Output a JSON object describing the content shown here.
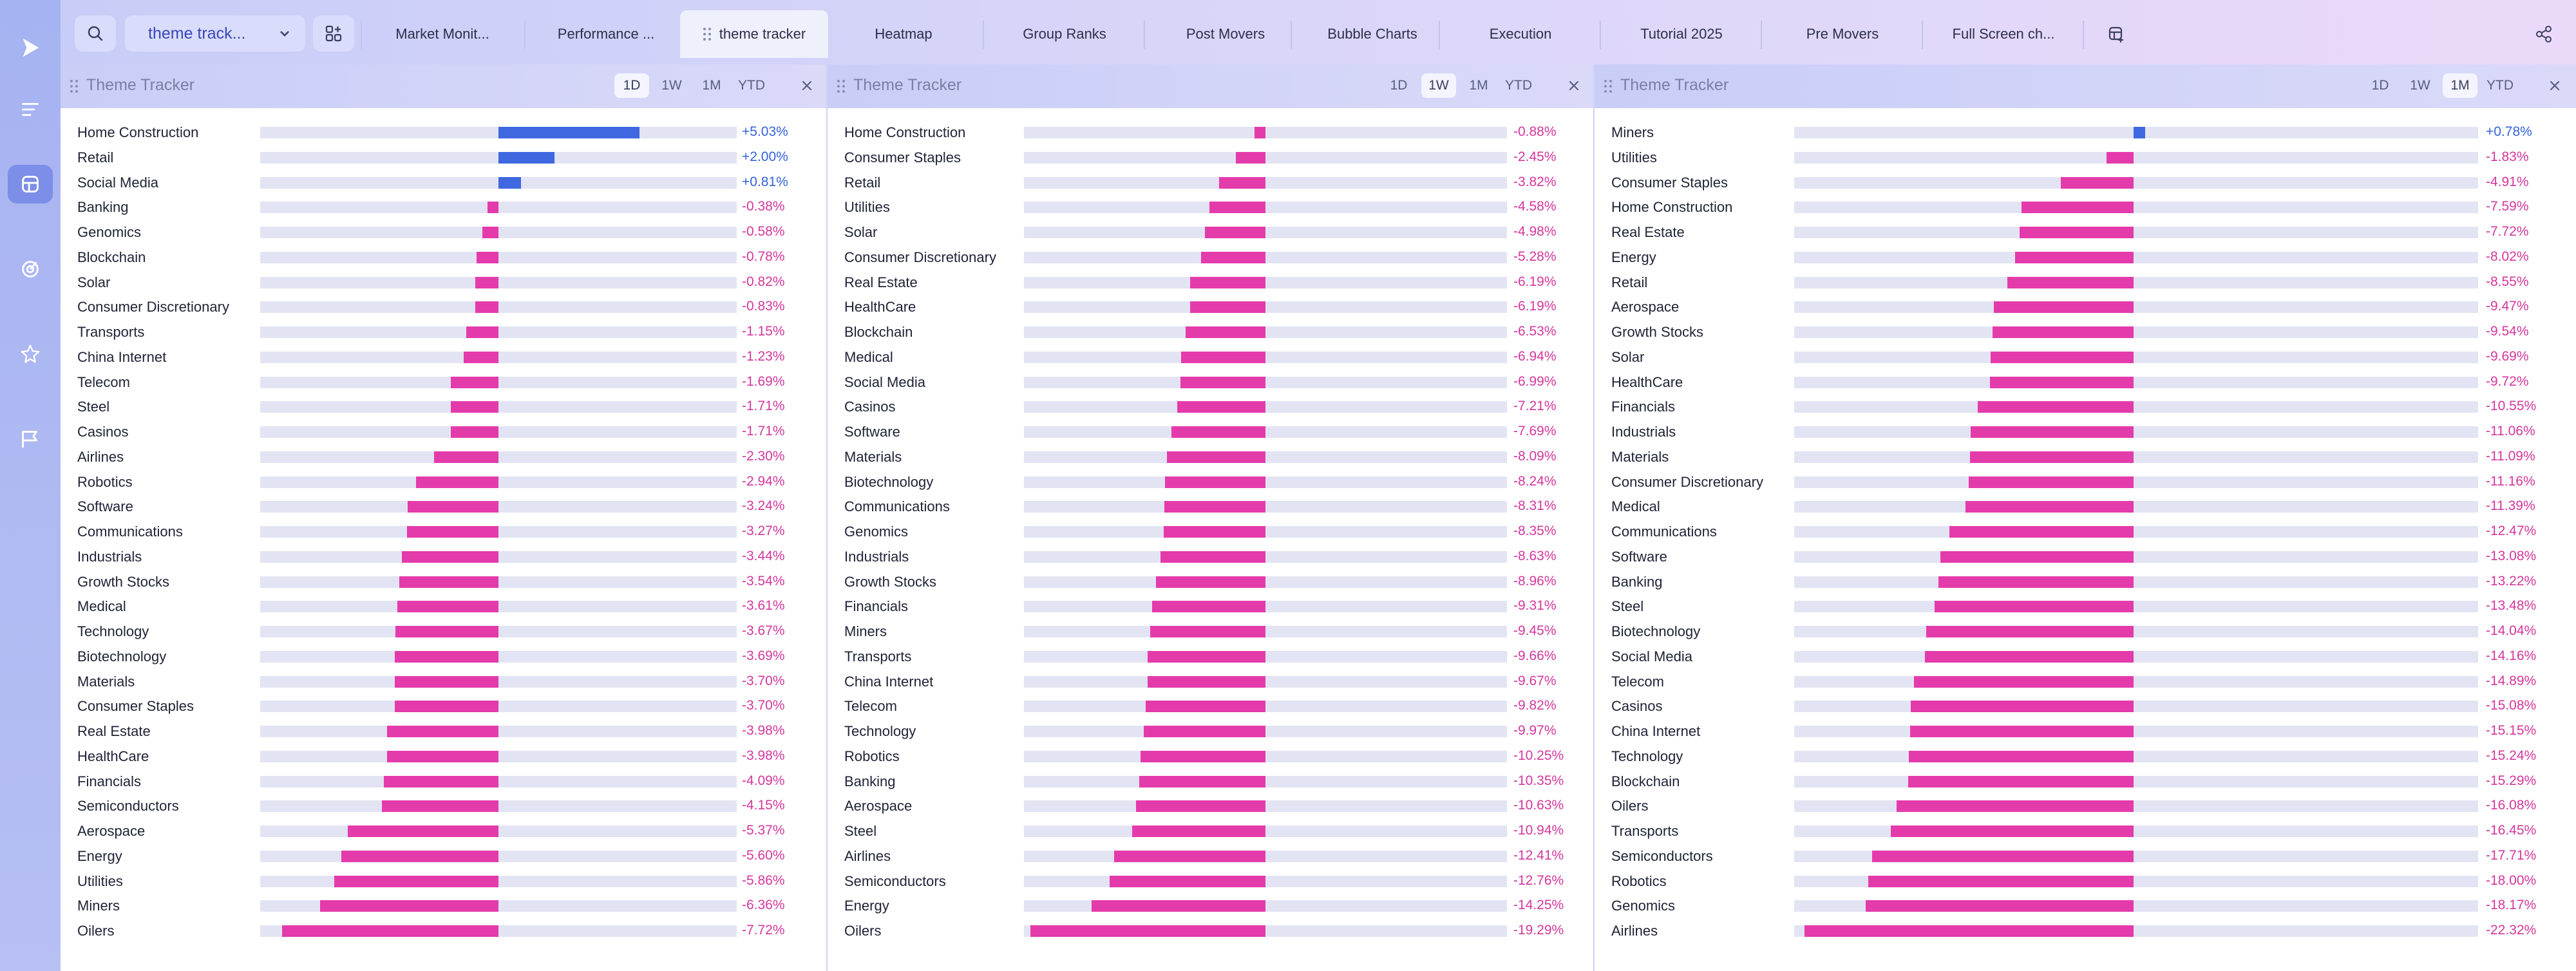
{
  "colors": {
    "positive": "#3f68e0",
    "negative": "#e43bab",
    "positive_text": "#3463d8",
    "negative_text": "#d4369d"
  },
  "rail": {
    "items": [
      {
        "icon": "play-logo-icon",
        "active": false
      },
      {
        "icon": "menu-lines-icon",
        "active": false
      },
      {
        "icon": "layout-icon",
        "active": true
      },
      {
        "icon": "radar-icon",
        "active": false
      },
      {
        "icon": "star-icon",
        "active": false
      },
      {
        "icon": "flag-icon",
        "active": false
      }
    ]
  },
  "topbar": {
    "workspace_select": "theme track...",
    "tabs": [
      {
        "label": "Market Monit..."
      },
      {
        "label": "Performance ..."
      },
      {
        "label": "theme tracker",
        "active": true
      },
      {
        "label": "Heatmap"
      },
      {
        "label": "Group Ranks"
      },
      {
        "label": "Post Movers"
      },
      {
        "label": "Bubble Charts"
      },
      {
        "label": "Execution"
      },
      {
        "label": "Tutorial 2025"
      },
      {
        "label": "Pre Movers"
      },
      {
        "label": "Full Screen ch..."
      }
    ]
  },
  "panels": [
    {
      "title": "Theme Tracker",
      "timeframes": [
        "1D",
        "1W",
        "1M",
        "YTD"
      ],
      "active_timeframe": "1D",
      "scale_max": 8.5,
      "rows": [
        {
          "name": "Home Construction",
          "value": 5.03,
          "label": "+5.03%"
        },
        {
          "name": "Retail",
          "value": 2.0,
          "label": "+2.00%"
        },
        {
          "name": "Social Media",
          "value": 0.81,
          "label": "+0.81%"
        },
        {
          "name": "Banking",
          "value": -0.38,
          "label": "-0.38%"
        },
        {
          "name": "Genomics",
          "value": -0.58,
          "label": "-0.58%"
        },
        {
          "name": "Blockchain",
          "value": -0.78,
          "label": "-0.78%"
        },
        {
          "name": "Solar",
          "value": -0.82,
          "label": "-0.82%"
        },
        {
          "name": "Consumer Discretionary",
          "value": -0.83,
          "label": "-0.83%"
        },
        {
          "name": "Transports",
          "value": -1.15,
          "label": "-1.15%"
        },
        {
          "name": "China Internet",
          "value": -1.23,
          "label": "-1.23%"
        },
        {
          "name": "Telecom",
          "value": -1.69,
          "label": "-1.69%"
        },
        {
          "name": "Steel",
          "value": -1.71,
          "label": "-1.71%"
        },
        {
          "name": "Casinos",
          "value": -1.71,
          "label": "-1.71%"
        },
        {
          "name": "Airlines",
          "value": -2.3,
          "label": "-2.30%"
        },
        {
          "name": "Robotics",
          "value": -2.94,
          "label": "-2.94%"
        },
        {
          "name": "Software",
          "value": -3.24,
          "label": "-3.24%"
        },
        {
          "name": "Communications",
          "value": -3.27,
          "label": "-3.27%"
        },
        {
          "name": "Industrials",
          "value": -3.44,
          "label": "-3.44%"
        },
        {
          "name": "Growth Stocks",
          "value": -3.54,
          "label": "-3.54%"
        },
        {
          "name": "Medical",
          "value": -3.61,
          "label": "-3.61%"
        },
        {
          "name": "Technology",
          "value": -3.67,
          "label": "-3.67%"
        },
        {
          "name": "Biotechnology",
          "value": -3.69,
          "label": "-3.69%"
        },
        {
          "name": "Materials",
          "value": -3.7,
          "label": "-3.70%"
        },
        {
          "name": "Consumer Staples",
          "value": -3.7,
          "label": "-3.70%"
        },
        {
          "name": "Real Estate",
          "value": -3.98,
          "label": "-3.98%"
        },
        {
          "name": "HealthCare",
          "value": -3.98,
          "label": "-3.98%"
        },
        {
          "name": "Financials",
          "value": -4.09,
          "label": "-4.09%"
        },
        {
          "name": "Semiconductors",
          "value": -4.15,
          "label": "-4.15%"
        },
        {
          "name": "Aerospace",
          "value": -5.37,
          "label": "-5.37%"
        },
        {
          "name": "Energy",
          "value": -5.6,
          "label": "-5.60%"
        },
        {
          "name": "Utilities",
          "value": -5.86,
          "label": "-5.86%"
        },
        {
          "name": "Miners",
          "value": -6.36,
          "label": "-6.36%"
        },
        {
          "name": "Oilers",
          "value": -7.72,
          "label": "-7.72%"
        }
      ]
    },
    {
      "title": "Theme Tracker",
      "timeframes": [
        "1D",
        "1W",
        "1M",
        "YTD"
      ],
      "active_timeframe": "1W",
      "scale_max": 19.8,
      "rows": [
        {
          "name": "Home Construction",
          "value": -0.88,
          "label": "-0.88%"
        },
        {
          "name": "Consumer Staples",
          "value": -2.45,
          "label": "-2.45%"
        },
        {
          "name": "Retail",
          "value": -3.82,
          "label": "-3.82%"
        },
        {
          "name": "Utilities",
          "value": -4.58,
          "label": "-4.58%"
        },
        {
          "name": "Solar",
          "value": -4.98,
          "label": "-4.98%"
        },
        {
          "name": "Consumer Discretionary",
          "value": -5.28,
          "label": "-5.28%"
        },
        {
          "name": "Real Estate",
          "value": -6.19,
          "label": "-6.19%"
        },
        {
          "name": "HealthCare",
          "value": -6.19,
          "label": "-6.19%"
        },
        {
          "name": "Blockchain",
          "value": -6.53,
          "label": "-6.53%"
        },
        {
          "name": "Medical",
          "value": -6.94,
          "label": "-6.94%"
        },
        {
          "name": "Social Media",
          "value": -6.99,
          "label": "-6.99%"
        },
        {
          "name": "Casinos",
          "value": -7.21,
          "label": "-7.21%"
        },
        {
          "name": "Software",
          "value": -7.69,
          "label": "-7.69%"
        },
        {
          "name": "Materials",
          "value": -8.09,
          "label": "-8.09%"
        },
        {
          "name": "Biotechnology",
          "value": -8.24,
          "label": "-8.24%"
        },
        {
          "name": "Communications",
          "value": -8.31,
          "label": "-8.31%"
        },
        {
          "name": "Genomics",
          "value": -8.35,
          "label": "-8.35%"
        },
        {
          "name": "Industrials",
          "value": -8.63,
          "label": "-8.63%"
        },
        {
          "name": "Growth Stocks",
          "value": -8.96,
          "label": "-8.96%"
        },
        {
          "name": "Financials",
          "value": -9.31,
          "label": "-9.31%"
        },
        {
          "name": "Miners",
          "value": -9.45,
          "label": "-9.45%"
        },
        {
          "name": "Transports",
          "value": -9.66,
          "label": "-9.66%"
        },
        {
          "name": "China Internet",
          "value": -9.67,
          "label": "-9.67%"
        },
        {
          "name": "Telecom",
          "value": -9.82,
          "label": "-9.82%"
        },
        {
          "name": "Technology",
          "value": -9.97,
          "label": "-9.97%"
        },
        {
          "name": "Robotics",
          "value": -10.25,
          "label": "-10.25%"
        },
        {
          "name": "Banking",
          "value": -10.35,
          "label": "-10.35%"
        },
        {
          "name": "Aerospace",
          "value": -10.63,
          "label": "-10.63%"
        },
        {
          "name": "Steel",
          "value": -10.94,
          "label": "-10.94%"
        },
        {
          "name": "Airlines",
          "value": -12.41,
          "label": "-12.41%"
        },
        {
          "name": "Semiconductors",
          "value": -12.76,
          "label": "-12.76%"
        },
        {
          "name": "Energy",
          "value": -14.25,
          "label": "-14.25%"
        },
        {
          "name": "Oilers",
          "value": -19.29,
          "label": "-19.29%"
        }
      ]
    },
    {
      "title": "Theme Tracker",
      "timeframes": [
        "1D",
        "1W",
        "1M",
        "YTD"
      ],
      "active_timeframe": "1M",
      "scale_max": 23,
      "rows": [
        {
          "name": "Miners",
          "value": 0.78,
          "label": "+0.78%"
        },
        {
          "name": "Utilities",
          "value": -1.83,
          "label": "-1.83%"
        },
        {
          "name": "Consumer Staples",
          "value": -4.91,
          "label": "-4.91%"
        },
        {
          "name": "Home Construction",
          "value": -7.59,
          "label": "-7.59%"
        },
        {
          "name": "Real Estate",
          "value": -7.72,
          "label": "-7.72%"
        },
        {
          "name": "Energy",
          "value": -8.02,
          "label": "-8.02%"
        },
        {
          "name": "Retail",
          "value": -8.55,
          "label": "-8.55%"
        },
        {
          "name": "Aerospace",
          "value": -9.47,
          "label": "-9.47%"
        },
        {
          "name": "Growth Stocks",
          "value": -9.54,
          "label": "-9.54%"
        },
        {
          "name": "Solar",
          "value": -9.69,
          "label": "-9.69%"
        },
        {
          "name": "HealthCare",
          "value": -9.72,
          "label": "-9.72%"
        },
        {
          "name": "Financials",
          "value": -10.55,
          "label": "-10.55%"
        },
        {
          "name": "Industrials",
          "value": -11.06,
          "label": "-11.06%"
        },
        {
          "name": "Materials",
          "value": -11.09,
          "label": "-11.09%"
        },
        {
          "name": "Consumer Discretionary",
          "value": -11.16,
          "label": "-11.16%"
        },
        {
          "name": "Medical",
          "value": -11.39,
          "label": "-11.39%"
        },
        {
          "name": "Communications",
          "value": -12.47,
          "label": "-12.47%"
        },
        {
          "name": "Software",
          "value": -13.08,
          "label": "-13.08%"
        },
        {
          "name": "Banking",
          "value": -13.22,
          "label": "-13.22%"
        },
        {
          "name": "Steel",
          "value": -13.48,
          "label": "-13.48%"
        },
        {
          "name": "Biotechnology",
          "value": -14.04,
          "label": "-14.04%"
        },
        {
          "name": "Social Media",
          "value": -14.16,
          "label": "-14.16%"
        },
        {
          "name": "Telecom",
          "value": -14.89,
          "label": "-14.89%"
        },
        {
          "name": "Casinos",
          "value": -15.08,
          "label": "-15.08%"
        },
        {
          "name": "China Internet",
          "value": -15.15,
          "label": "-15.15%"
        },
        {
          "name": "Technology",
          "value": -15.24,
          "label": "-15.24%"
        },
        {
          "name": "Blockchain",
          "value": -15.29,
          "label": "-15.29%"
        },
        {
          "name": "Oilers",
          "value": -16.08,
          "label": "-16.08%"
        },
        {
          "name": "Transports",
          "value": -16.45,
          "label": "-16.45%"
        },
        {
          "name": "Semiconductors",
          "value": -17.71,
          "label": "-17.71%"
        },
        {
          "name": "Robotics",
          "value": -18.0,
          "label": "-18.00%"
        },
        {
          "name": "Genomics",
          "value": -18.17,
          "label": "-18.17%"
        },
        {
          "name": "Airlines",
          "value": -22.32,
          "label": "-22.32%"
        }
      ]
    }
  ]
}
